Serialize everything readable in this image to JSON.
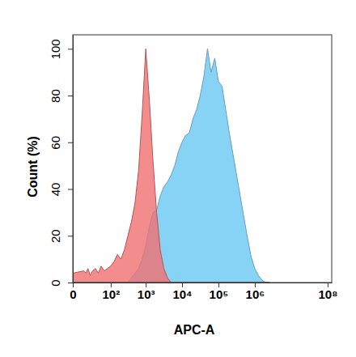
{
  "chart_data": {
    "type": "area",
    "x_label": "APC-A",
    "y_label": "Count (%)",
    "log": "x",
    "xlim": [
      0,
      130000000
    ],
    "xticks": [
      0,
      {
        "value": 100,
        "label": "10²"
      },
      {
        "value": 1000,
        "label": "10³"
      },
      {
        "value": 10000,
        "label": "10⁴"
      },
      {
        "value": 100000,
        "label": "10⁵"
      },
      {
        "value": 1000000,
        "label": "10⁶"
      },
      {
        "value": 100000000,
        "label": "10⁸"
      }
    ],
    "ylim": [
      0,
      106
    ],
    "yticks": [
      0,
      20,
      40,
      60,
      80,
      100
    ],
    "x": [
      0,
      10,
      13,
      16,
      20,
      25,
      32,
      40,
      50,
      63,
      79,
      100,
      126,
      158,
      200,
      251,
      316,
      398,
      501,
      631,
      794,
      1000,
      1259,
      1585,
      1995,
      2512,
      3162,
      3981,
      5012,
      6310,
      7943,
      10000,
      12589,
      15849,
      19953,
      25119,
      31623,
      39811,
      50119,
      63096,
      79433,
      100000,
      125893,
      158489,
      199526,
      251189,
      316228,
      398107,
      501187,
      630957,
      794328,
      1000000,
      1258925,
      1584893,
      1995262,
      2511886
    ],
    "series": [
      {
        "color": "#87d3f5",
        "values": [
          0,
          0,
          0,
          0,
          0,
          0,
          0,
          0,
          0,
          0,
          0,
          0,
          0,
          0,
          0,
          0,
          0,
          2,
          4,
          6,
          10,
          16,
          24,
          30,
          31,
          37,
          41,
          43,
          46,
          50,
          56,
          60,
          63,
          64,
          70,
          74,
          80,
          88,
          100,
          90,
          96,
          86,
          84,
          74,
          64,
          55,
          46,
          37,
          28,
          19,
          11,
          6,
          3,
          1,
          0,
          0
        ]
      },
      {
        "color": "#f07070",
        "values": [
          4,
          5,
          4,
          6,
          3,
          5,
          6,
          4,
          7,
          5,
          6,
          7,
          9,
          12,
          10,
          14,
          20,
          26,
          34,
          48,
          72,
          100,
          78,
          52,
          30,
          14,
          6,
          2,
          0,
          0,
          0,
          0,
          0,
          0,
          0,
          0,
          0,
          0,
          0,
          0,
          0,
          0,
          0,
          0,
          0,
          0,
          0,
          0,
          0,
          0,
          0,
          0,
          0,
          0,
          0,
          0
        ]
      }
    ]
  }
}
